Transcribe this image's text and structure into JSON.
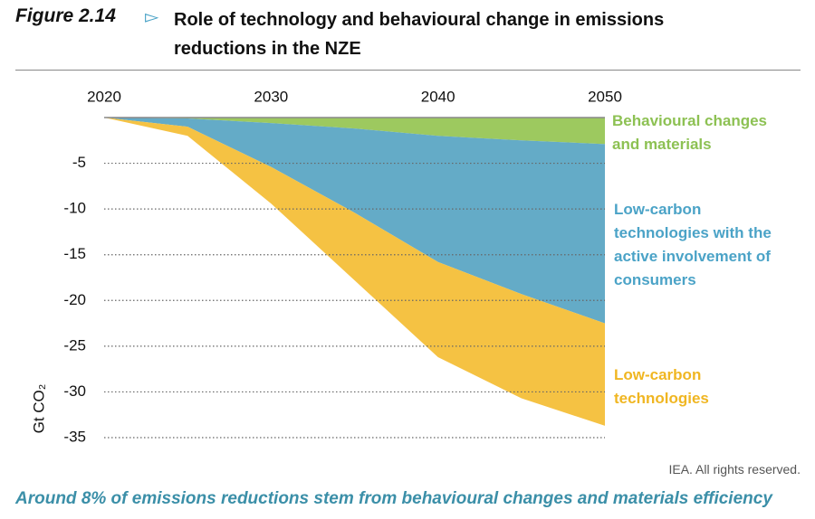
{
  "chart_data": {
    "type": "area",
    "figure": "Figure 2.14",
    "title": "Role of technology and behavioural change in emissions reductions in the NZE",
    "y_label": "Gt CO₂",
    "x": [
      2020,
      2025,
      2030,
      2035,
      2040,
      2045,
      2050
    ],
    "xlim": [
      2020,
      2050
    ],
    "xticks": [
      2020,
      2030,
      2040,
      2050
    ],
    "ylim": [
      -35,
      0
    ],
    "yticks": [
      -5,
      -10,
      -15,
      -20,
      -25,
      -30,
      -35
    ],
    "grid": true,
    "stacked": true,
    "series": [
      {
        "name": "Behavioural changes and materials",
        "color": "#9dc95f",
        "label_color": "#8dc153",
        "values": [
          0,
          -0.1,
          -0.6,
          -1.2,
          -2.0,
          -2.5,
          -2.9
        ]
      },
      {
        "name": "Low-carbon technologies with the active involvement of consumers",
        "color": "#64abc7",
        "label_color": "#4ba3c7",
        "values": [
          0,
          -0.9,
          -4.8,
          -9.2,
          -13.8,
          -16.8,
          -19.6
        ]
      },
      {
        "name": "Low-carbon technologies",
        "color": "#f5c243",
        "label_color": "#f0b622",
        "values": [
          0,
          -1.0,
          -4.0,
          -7.4,
          -10.4,
          -11.4,
          -11.2
        ]
      }
    ],
    "source": "IEA. All rights reserved.",
    "caption": "Around 8% of emissions reductions stem from behavioural changes and materials efficiency"
  }
}
